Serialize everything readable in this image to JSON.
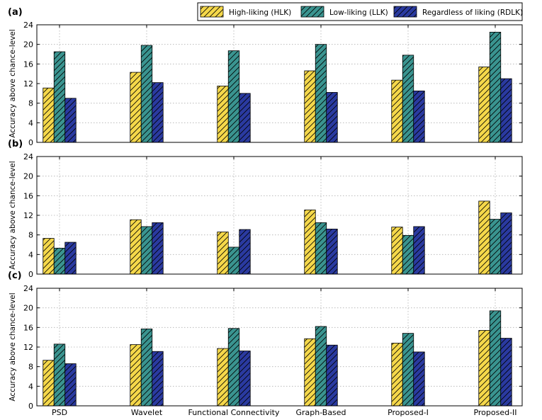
{
  "chart_data": {
    "type": "bar",
    "categories": [
      "PSD",
      "Wavelet",
      "Functional Connectivity",
      "Graph-Based",
      "Proposed-I",
      "Proposed-II"
    ],
    "legend": {
      "placement": "top-right",
      "entries": [
        {
          "name": "High-liking (HLK)",
          "color": "#f5d84a"
        },
        {
          "name": "Low-liking (LLK)",
          "color": "#3a9490"
        },
        {
          "name": "Regardless of liking (RDLK)",
          "color": "#2a3aa0"
        }
      ]
    },
    "ylim": [
      0,
      24
    ],
    "yticks": [
      "0",
      "4",
      "8",
      "12",
      "16",
      "20",
      "24"
    ],
    "grid": true,
    "panels": [
      {
        "label": "(a)",
        "ylabel": "Accuracy above chance-level",
        "series": [
          {
            "name": "High-liking (HLK)",
            "values": [
              11.1,
              14.3,
              11.5,
              14.6,
              12.7,
              15.4
            ]
          },
          {
            "name": "Low-liking (LLK)",
            "values": [
              18.5,
              19.8,
              18.7,
              20.0,
              17.8,
              22.5
            ]
          },
          {
            "name": "Regardless of liking (RDLK)",
            "values": [
              9.0,
              12.2,
              10.0,
              10.2,
              10.5,
              13.0
            ]
          }
        ]
      },
      {
        "label": "(b)",
        "ylabel": "Accuracy above chance-level",
        "series": [
          {
            "name": "High-liking (HLK)",
            "values": [
              7.3,
              11.1,
              8.6,
              13.1,
              9.6,
              14.9
            ]
          },
          {
            "name": "Low-liking (LLK)",
            "values": [
              5.3,
              9.7,
              5.5,
              10.5,
              7.9,
              11.2
            ]
          },
          {
            "name": "Regardless of liking (RDLK)",
            "values": [
              6.5,
              10.5,
              9.1,
              9.2,
              9.7,
              12.5
            ]
          }
        ]
      },
      {
        "label": "(c)",
        "ylabel": "Accuracy above chance-level",
        "series": [
          {
            "name": "High-liking (HLK)",
            "values": [
              9.3,
              12.5,
              11.7,
              13.7,
              12.8,
              15.4
            ]
          },
          {
            "name": "Low-liking (LLK)",
            "values": [
              12.6,
              15.7,
              15.8,
              16.2,
              14.8,
              19.4
            ]
          },
          {
            "name": "Regardless of liking (RDLK)",
            "values": [
              8.6,
              11.1,
              11.2,
              12.4,
              11.0,
              13.8
            ]
          }
        ]
      }
    ]
  }
}
